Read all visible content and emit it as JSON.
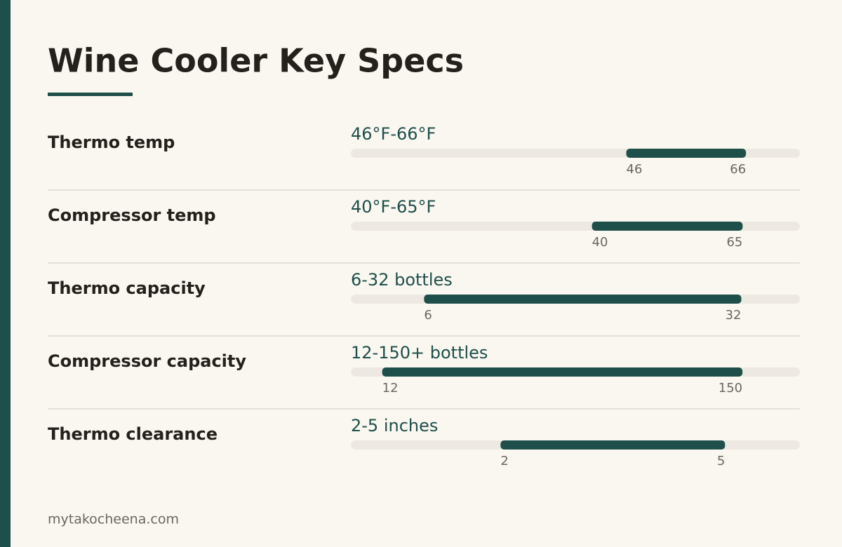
{
  "header": {
    "title": "Wine Cooler Key Specs"
  },
  "rows": [
    {
      "label": "Thermo temp",
      "range_text": "46°F-66°F",
      "low": 46,
      "high": 66,
      "xlim": [
        0,
        75
      ]
    },
    {
      "label": "Compressor temp",
      "range_text": "40°F-65°F",
      "low": 40,
      "high": 65,
      "xlim": [
        0,
        74.5
      ]
    },
    {
      "label": "Thermo capacity",
      "range_text": "6-32 bottles",
      "low": 6,
      "high": 32,
      "xlim": [
        0,
        36.8
      ]
    },
    {
      "label": "Compressor capacity",
      "range_text": "12-150+ bottles",
      "low": 12,
      "high": 150,
      "xlim": [
        0,
        172
      ]
    },
    {
      "label": "Thermo clearance",
      "range_text": "2-5 inches",
      "low": 2,
      "high": 5,
      "xlim": [
        0,
        6
      ]
    }
  ],
  "footer": {
    "source": "mytakocheena.com"
  }
}
